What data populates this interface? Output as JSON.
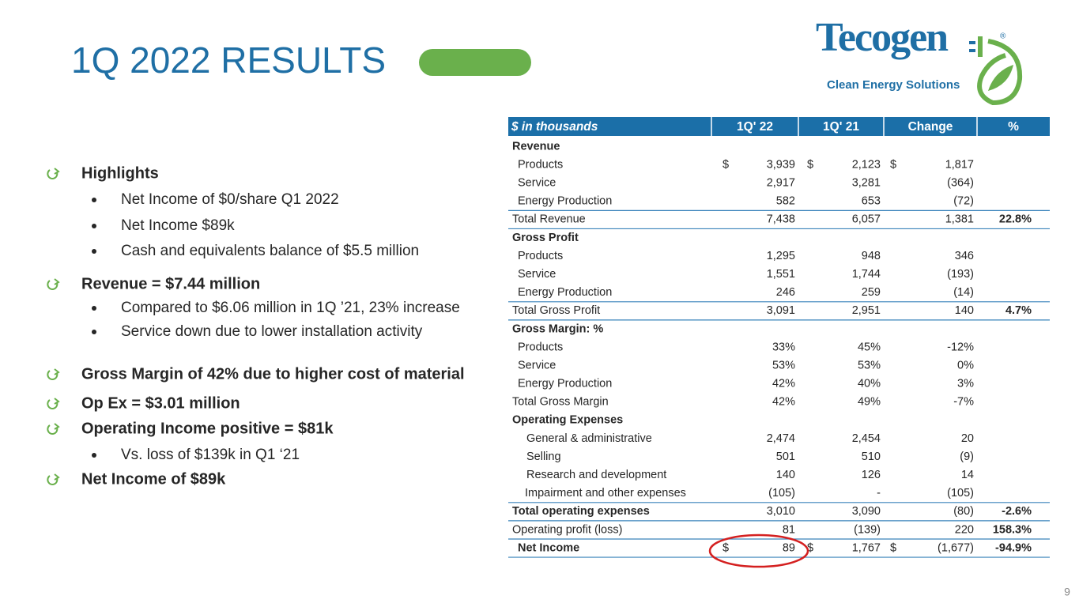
{
  "title": "1Q 2022 RESULTS",
  "logo": {
    "name": "Tecogen",
    "mark": "®",
    "tagline": "Clean Energy Solutions"
  },
  "bullets": [
    {
      "text": "Highlights",
      "items": [
        "Net Income of $0/share Q1 2022",
        "Net Income $89k",
        "Cash and equivalents balance of $5.5 million"
      ]
    },
    {
      "text": "Revenue = $7.44 million",
      "items": [
        "Compared to $6.06 million in 1Q ’21, 23% increase",
        "Service down due  to lower installation activity"
      ]
    },
    {
      "text": "Gross Margin of 42% due to higher cost of material"
    },
    {
      "text": "Op Ex = $3.01 million"
    },
    {
      "text": "Operating Income positive = $81k",
      "items": [
        "Vs. loss of  $139k in Q1 ‘21"
      ]
    },
    {
      "text": "Net Income of $89k"
    }
  ],
  "table": {
    "header": [
      "$ in thousands",
      "1Q' 22",
      "1Q' 21",
      "Change",
      "%"
    ],
    "rows": [
      {
        "label": "Revenue"
      },
      {
        "label": "Products",
        "currency": [
          "$",
          "$",
          "$"
        ],
        "values": [
          "3,939",
          "2,123",
          "1,817"
        ]
      },
      {
        "label": "Service",
        "values": [
          "2,917",
          "3,281",
          "(364)"
        ]
      },
      {
        "label": "Energy Production",
        "values": [
          "582",
          "653",
          "(72)"
        ]
      },
      {
        "label": "Total Revenue",
        "values": [
          "7,438",
          "6,057",
          "1,381"
        ],
        "pct": "22.8%"
      },
      {
        "label": "Gross Profit"
      },
      {
        "label": "Products",
        "values": [
          "1,295",
          "948",
          "346"
        ]
      },
      {
        "label": "Service",
        "values": [
          "1,551",
          "1,744",
          "(193)"
        ]
      },
      {
        "label": "Energy Production",
        "values": [
          "246",
          "259",
          "(14)"
        ]
      },
      {
        "label": "Total Gross Profit",
        "values": [
          "3,091",
          "2,951",
          "140"
        ],
        "pct": "4.7%"
      },
      {
        "label": "Gross Margin: %"
      },
      {
        "label": "Products",
        "values": [
          "33%",
          "45%",
          "-12%"
        ]
      },
      {
        "label": "Service",
        "values": [
          "53%",
          "53%",
          "0%"
        ]
      },
      {
        "label": "Energy Production",
        "values": [
          "42%",
          "40%",
          "3%"
        ]
      },
      {
        "label": "Total Gross Margin",
        "values": [
          "42%",
          "49%",
          "-7%"
        ]
      },
      {
        "label": "Operating Expenses"
      },
      {
        "label": "General & administrative",
        "values": [
          "2,474",
          "2,454",
          "20"
        ]
      },
      {
        "label": "Selling",
        "values": [
          "501",
          "510",
          "(9)"
        ]
      },
      {
        "label": "Research and development",
        "values": [
          "140",
          "126",
          "14"
        ]
      },
      {
        "label": "Impairment and other expenses",
        "values": [
          "(105)",
          "-",
          "(105)"
        ]
      },
      {
        "label": "Total operating expenses",
        "values": [
          "3,010",
          "3,090",
          "(80)"
        ],
        "pct": "-2.6%"
      },
      {
        "label": "Operating profit (loss)",
        "values": [
          "81",
          "(139)",
          "220"
        ],
        "pct": "158.3%"
      },
      {
        "label": "Net Income",
        "currency": [
          "$",
          "$",
          "$"
        ],
        "values": [
          "89",
          "1,767",
          "(1,677)"
        ],
        "pct": "-94.9%"
      }
    ]
  },
  "page_number": "9"
}
